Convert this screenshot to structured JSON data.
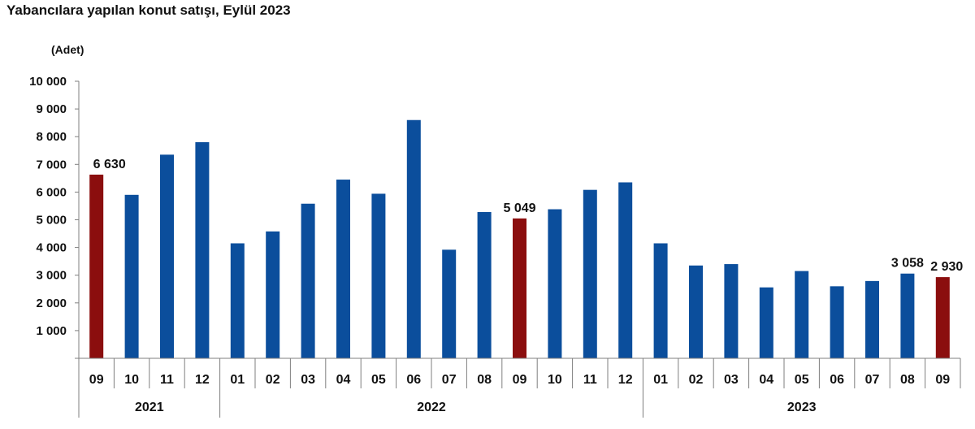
{
  "title": "Yabancılara yapılan konut satışı, Eylül 2023",
  "chart_data": {
    "type": "bar",
    "title": "Yabancılara yapılan konut satışı, Eylül 2023",
    "unit": "(Adet)",
    "ylim": [
      0,
      10000
    ],
    "yticks": [
      "",
      "1 000",
      "2 000",
      "3 000",
      "4 000",
      "5 000",
      "6 000",
      "7 000",
      "8 000",
      "9 000",
      "10 000"
    ],
    "grid": false,
    "legend": "none",
    "categories": [
      "09",
      "10",
      "11",
      "12",
      "01",
      "02",
      "03",
      "04",
      "05",
      "06",
      "07",
      "08",
      "09",
      "10",
      "11",
      "12",
      "01",
      "02",
      "03",
      "04",
      "05",
      "06",
      "07",
      "08",
      "09"
    ],
    "years": [
      {
        "label": "2021",
        "count": 4
      },
      {
        "label": "2022",
        "count": 12
      },
      {
        "label": "2023",
        "count": 9
      }
    ],
    "values": [
      6630,
      5900,
      7350,
      7800,
      4150,
      4580,
      5580,
      6450,
      5940,
      8600,
      3920,
      5280,
      5049,
      5380,
      6080,
      6350,
      4150,
      3350,
      3400,
      2560,
      3150,
      2600,
      2790,
      3058,
      2930
    ],
    "highlight": [
      true,
      false,
      false,
      false,
      false,
      false,
      false,
      false,
      false,
      false,
      false,
      false,
      true,
      false,
      false,
      false,
      false,
      false,
      false,
      false,
      false,
      false,
      false,
      false,
      true
    ],
    "data_labels": [
      "6 630",
      "",
      "",
      "",
      "",
      "",
      "",
      "",
      "",
      "",
      "",
      "",
      "5 049",
      "",
      "",
      "",
      "",
      "",
      "",
      "",
      "",
      "",
      "",
      "3 058",
      "2 930"
    ],
    "colors": {
      "bar": "#0b4e9c",
      "highlight": "#8b0e0e",
      "axis": "#7f7f7f"
    }
  }
}
